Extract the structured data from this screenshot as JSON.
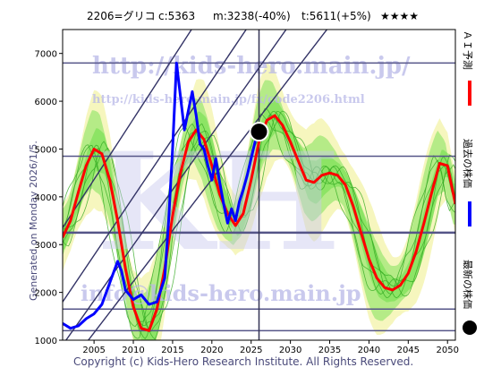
{
  "header": {
    "code_name": "2206=グリコ",
    "current": "c:5363",
    "model": "m:3238(-40%)",
    "target": "t:5611(+5%)",
    "rating": "★★★★"
  },
  "side_text": "Generated on Monday 2026/1/5.",
  "copyright": "Copyright (c) Kids-Hero Research Institute. All Rights Reserved.",
  "watermark": {
    "url1": "http://kids-hero.main.jp/",
    "url2": "http://kids-hero.main.jp/fx/code2206.html",
    "email": "info@kids-hero.main.jp",
    "big": "KH"
  },
  "legend": {
    "ai_forecast": "ＡＩ予測",
    "past_price": "過去の株価",
    "latest_price": "最新の株価"
  },
  "colors": {
    "forecast": "#ff0000",
    "past": "#0000ff",
    "latest": "#000000",
    "band_green": "#66dd44",
    "band_yellow": "#eeee88",
    "channel": "#333366",
    "hline": "#555588"
  },
  "chart_data": {
    "type": "line",
    "xlim": [
      2001,
      2051
    ],
    "ylim": [
      1000,
      7500
    ],
    "x_ticks": [
      2005,
      2010,
      2015,
      2020,
      2025,
      2030,
      2035,
      2040,
      2045,
      2050
    ],
    "y_ticks": [
      1000,
      2000,
      3000,
      4000,
      5000,
      6000,
      7000
    ],
    "horizontal_levels": [
      6800,
      4850,
      3250,
      1650,
      1200
    ],
    "vertical_marker_x": 2026,
    "latest_point": {
      "x": 2026,
      "y": 5363
    },
    "channel_lines": [
      {
        "x1": 2001,
        "y1": 3350,
        "x2": 2051,
        "y2": 16000
      },
      {
        "x1": 2001,
        "y1": 1800,
        "x2": 2051,
        "y2": 14000
      },
      {
        "x1": 2001,
        "y1": 900,
        "x2": 2051,
        "y2": 12500
      },
      {
        "x1": 2001,
        "y1": 300,
        "x2": 2051,
        "y2": 11000
      }
    ],
    "series": [
      {
        "name": "ＡＩ予測",
        "color": "#ff0000",
        "x": [
          2001,
          2002,
          2003,
          2004,
          2005,
          2006,
          2007,
          2008,
          2009,
          2010,
          2011,
          2012,
          2013,
          2014,
          2015,
          2016,
          2017,
          2018,
          2019,
          2020,
          2021,
          2022,
          2023,
          2024,
          2025,
          2026,
          2027,
          2028,
          2029,
          2030,
          2031,
          2032,
          2033,
          2034,
          2035,
          2036,
          2037,
          2038,
          2039,
          2040,
          2041,
          2042,
          2043,
          2044,
          2045,
          2046,
          2047,
          2048,
          2049,
          2050,
          2051
        ],
        "values": [
          3150,
          3500,
          4100,
          4650,
          5000,
          4900,
          4350,
          3500,
          2500,
          1700,
          1250,
          1200,
          1650,
          2500,
          3600,
          4500,
          5150,
          5400,
          5200,
          4650,
          4050,
          3650,
          3400,
          3650,
          4350,
          5150,
          5600,
          5700,
          5500,
          5150,
          4750,
          4350,
          4300,
          4450,
          4500,
          4450,
          4250,
          3800,
          3250,
          2700,
          2300,
          2100,
          2050,
          2150,
          2400,
          2850,
          3450,
          4100,
          4700,
          4650,
          3850
        ]
      },
      {
        "name": "過去の株価",
        "color": "#0000ff",
        "x": [
          2001,
          2002,
          2003,
          2004,
          2005,
          2006,
          2007,
          2008,
          2008.5,
          2009,
          2010,
          2011,
          2012,
          2013,
          2014,
          2014.5,
          2015,
          2015.5,
          2016,
          2016.5,
          2017,
          2017.5,
          2018,
          2018.5,
          2019,
          2019.5,
          2020,
          2020.5,
          2021,
          2021.5,
          2022,
          2022.5,
          2023,
          2023.5,
          2024,
          2024.5,
          2025,
          2025.5,
          2026
        ],
        "values": [
          1350,
          1250,
          1300,
          1450,
          1550,
          1750,
          2200,
          2650,
          2450,
          2050,
          1850,
          1950,
          1750,
          1800,
          2300,
          3500,
          5000,
          6800,
          6100,
          5400,
          5800,
          6200,
          5700,
          5100,
          5000,
          4650,
          4350,
          4800,
          4300,
          3850,
          3450,
          3750,
          3500,
          3900,
          4150,
          4450,
          4800,
          5150,
          5363
        ]
      }
    ]
  }
}
